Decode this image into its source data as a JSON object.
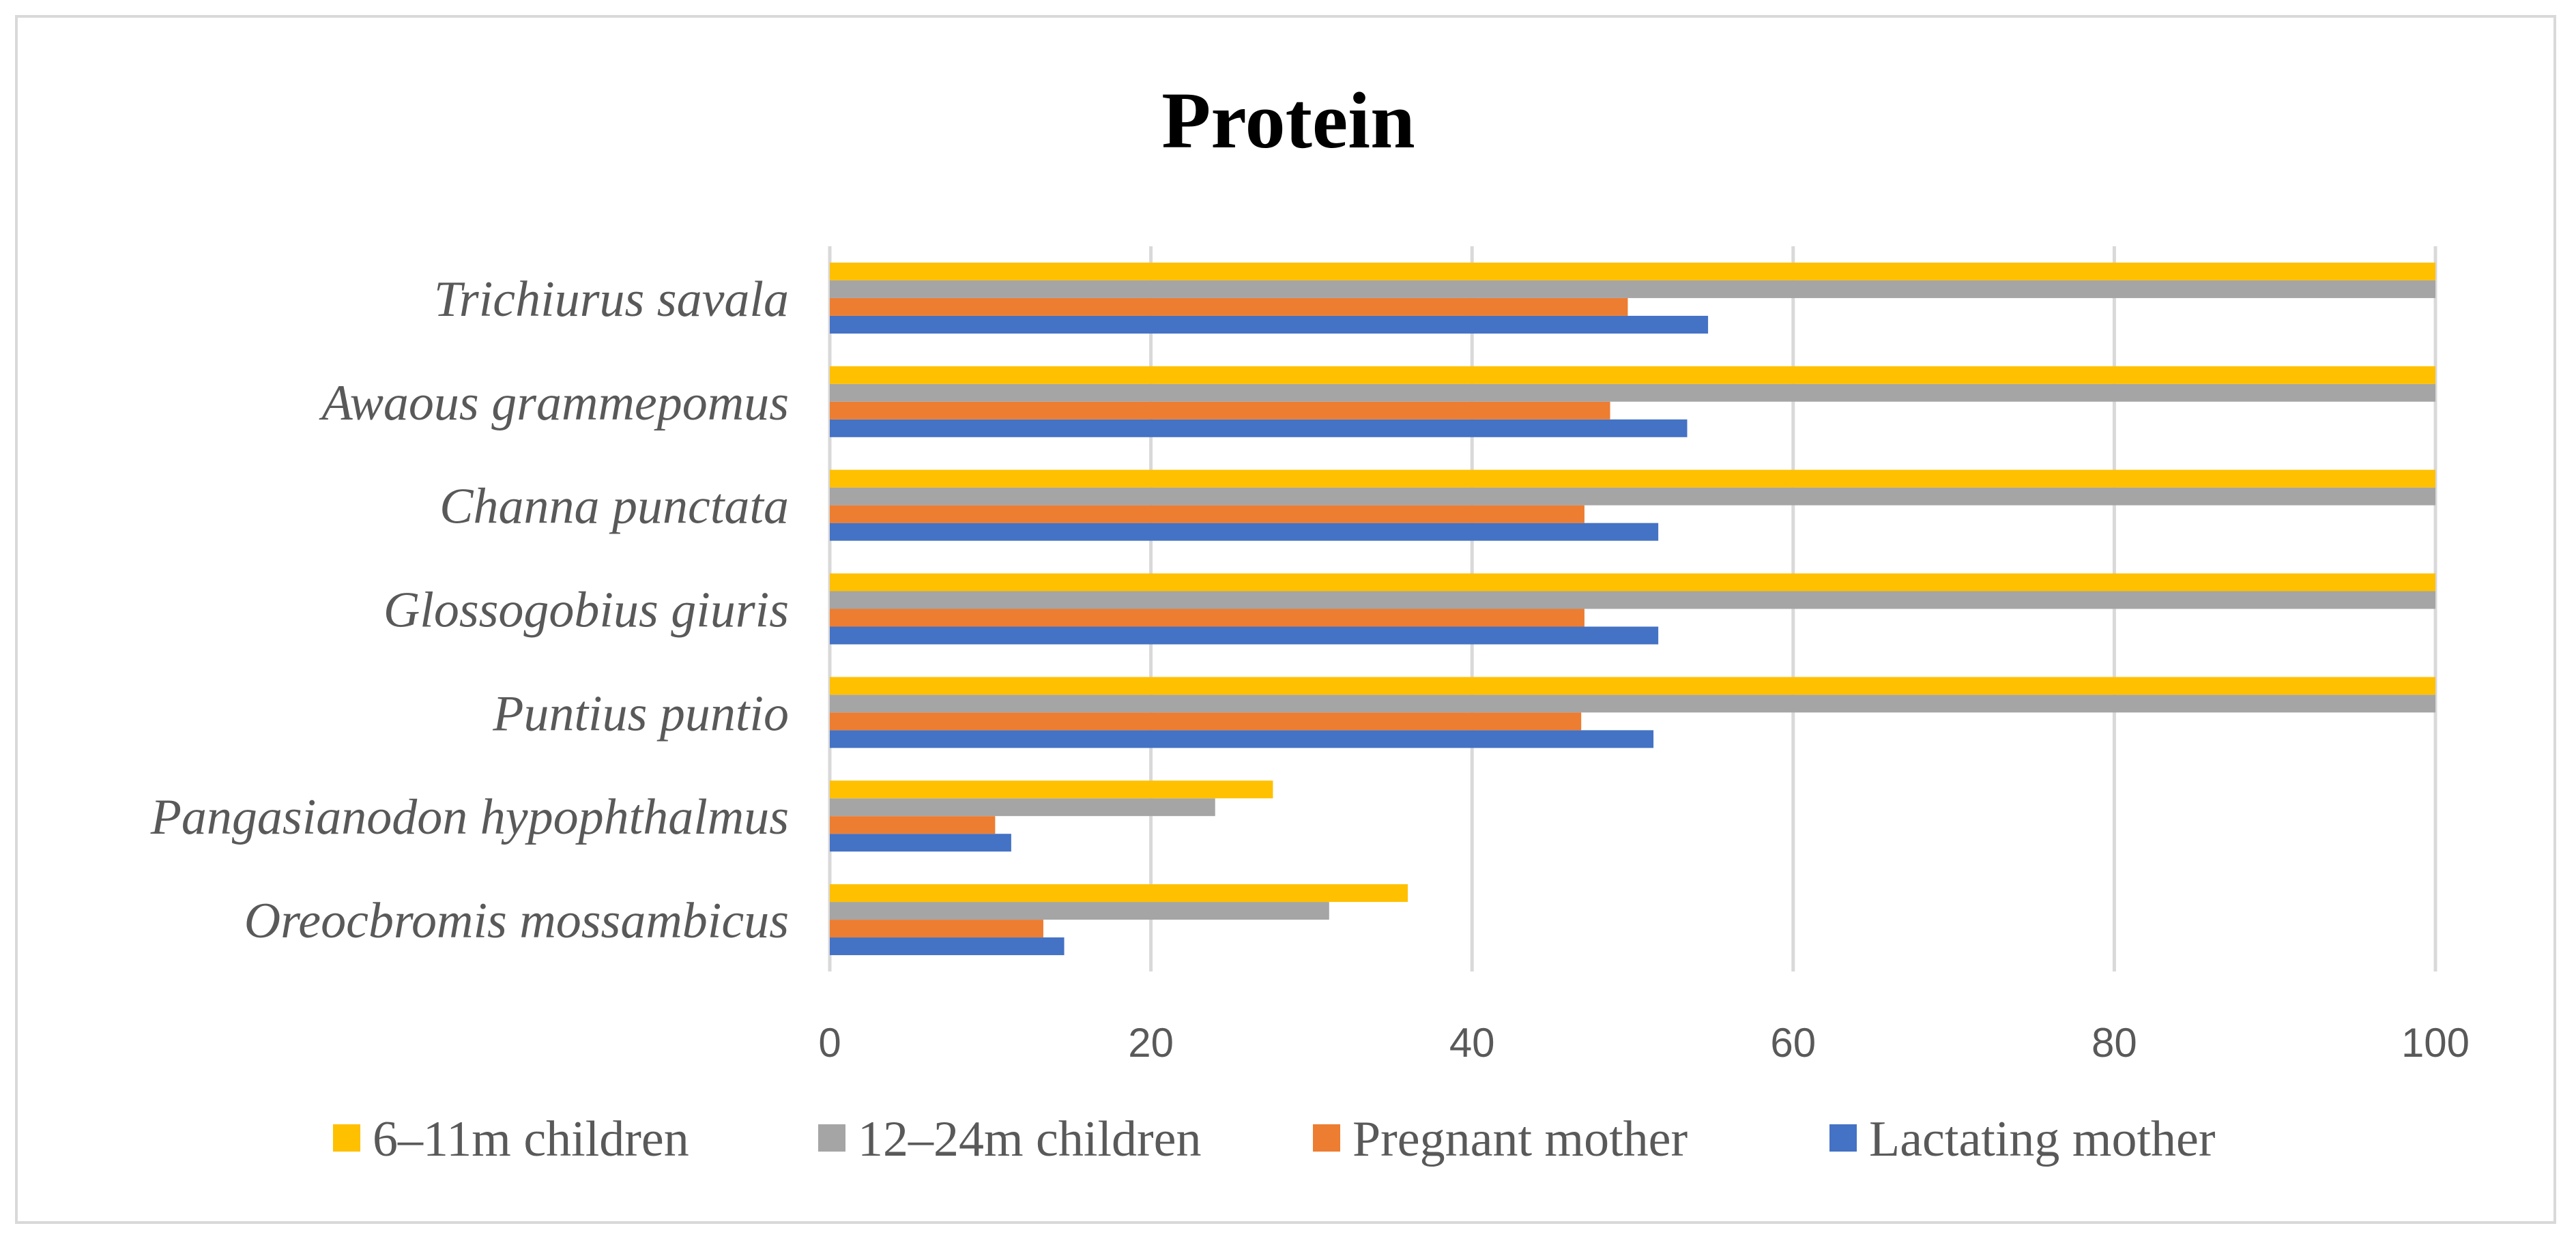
{
  "chart_data": {
    "type": "bar",
    "orientation": "horizontal",
    "title": "Protein",
    "xlabel": "",
    "ylabel": "",
    "xlim": [
      0,
      100
    ],
    "x_ticks": [
      "0",
      "20",
      "40",
      "60",
      "80",
      "100"
    ],
    "grid": true,
    "legend_position": "bottom",
    "categories": [
      "Oreocbromis mossambicus",
      "Pangasianodon hypophthalmus",
      "Puntius puntio",
      "Glossogobius giuris",
      "Channa punctata",
      "Awaous grammepomus",
      "Trichiurus savala"
    ],
    "series": [
      {
        "name": "Lactating mother",
        "color": "#4472c4",
        "values": [
          14.6,
          11.3,
          51.3,
          51.6,
          51.6,
          53.4,
          54.7
        ]
      },
      {
        "name": "Pregnant mother",
        "color": "#ed7d31",
        "values": [
          13.3,
          10.3,
          46.8,
          47.0,
          47.0,
          48.6,
          49.7
        ]
      },
      {
        "name": "12–24m children",
        "color": "#a5a5a5",
        "values": [
          31.1,
          24.0,
          100,
          100,
          100,
          100,
          100
        ]
      },
      {
        "name": "6–11m children",
        "color": "#ffc000",
        "values": [
          36.0,
          27.6,
          100,
          100,
          100,
          100,
          100
        ]
      }
    ],
    "legend_order": [
      "6–11m children",
      "12–24m children",
      "Pregnant mother",
      "Lactating mother"
    ]
  }
}
